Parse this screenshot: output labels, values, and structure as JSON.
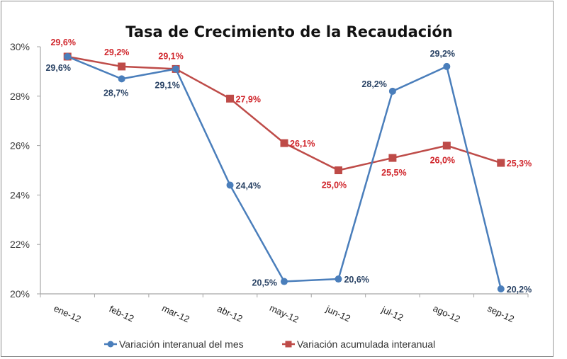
{
  "chart_data": {
    "type": "line",
    "title": "Tasa de Crecimiento de la Recaudación",
    "xlabel": "",
    "ylabel": "",
    "categories": [
      "ene-12",
      "feb-12",
      "mar-12",
      "abr-12",
      "may-12",
      "jun-12",
      "jul-12",
      "ago-12",
      "sep-12"
    ],
    "ylim": [
      20,
      30
    ],
    "yticks": [
      20,
      22,
      24,
      26,
      28,
      30
    ],
    "ytick_labels": [
      "20%",
      "22%",
      "24%",
      "26%",
      "28%",
      "30%"
    ],
    "grid": false,
    "legend_position": "bottom",
    "series": [
      {
        "name": "Variación interanual del mes",
        "color": "#4a7ebb",
        "marker": "circle",
        "values": [
          29.6,
          28.7,
          29.1,
          24.4,
          20.5,
          20.6,
          28.2,
          29.2,
          20.2
        ],
        "labels": [
          "29,6%",
          "28,7%",
          "29,1%",
          "24,4%",
          "20,5%",
          "20,6%",
          "28,2%",
          "29,2%",
          "20,2%"
        ]
      },
      {
        "name": "Variación acumulada interanual",
        "color": "#be4b48",
        "marker": "square",
        "values": [
          29.6,
          29.2,
          29.1,
          27.9,
          26.1,
          25.0,
          25.5,
          26.0,
          25.3
        ],
        "labels": [
          "29,6%",
          "29,2%",
          "29,1%",
          "27,9%",
          "26,1%",
          "25,0%",
          "25,5%",
          "26,0%",
          "25,3%"
        ]
      }
    ]
  }
}
